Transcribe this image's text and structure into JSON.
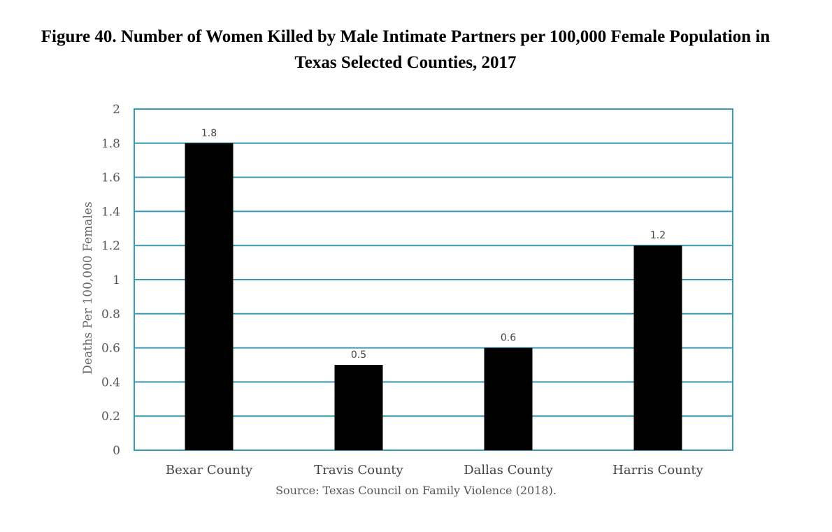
{
  "figure": {
    "title_line1": "Figure 40. Number of Women Killed by Male Intimate Partners per 100,000 Female Population in",
    "title_line2": "Texas Selected Counties, 2017",
    "source": "Source: Texas Council on Family Violence (2018)."
  },
  "chart_data": {
    "type": "bar",
    "title": "Figure 40. Number of Women Killed by Male Intimate Partners per 100,000 Female Population in Texas Selected Counties, 2017",
    "categories": [
      "Bexar County",
      "Travis County",
      "Dallas County",
      "Harris County"
    ],
    "values": [
      1.8,
      0.5,
      0.6,
      1.2
    ],
    "data_labels": [
      "1.8",
      "0.5",
      "0.6",
      "1.2"
    ],
    "xlabel": "",
    "ylabel": "Deaths Per 100,000 Females",
    "ylim": [
      0,
      2
    ],
    "yticks": [
      "0",
      "0.2",
      "0.4",
      "0.6",
      "0.8",
      "1",
      "1.2",
      "1.4",
      "1.6",
      "1.8",
      "2"
    ],
    "grid": true,
    "legend": "none",
    "colors": {
      "bar": "#000000",
      "grid": "#3a9ab5",
      "frame": "#3a9ab5"
    }
  }
}
